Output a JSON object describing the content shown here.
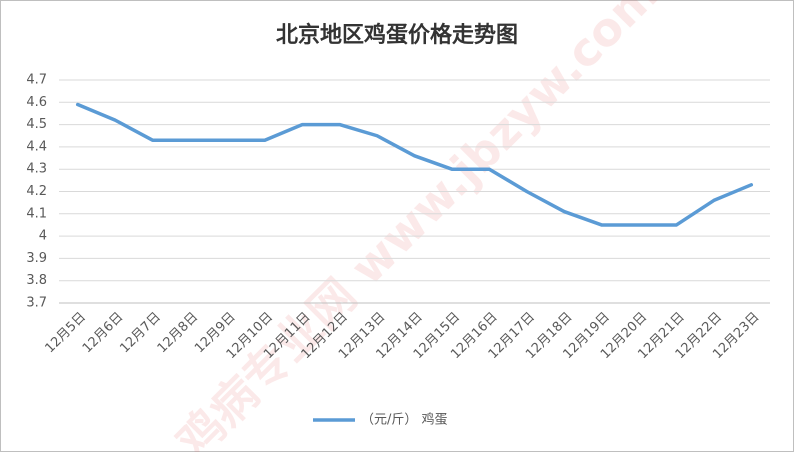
{
  "chart_data": {
    "type": "line",
    "title": "北京地区鸡蛋价格走势图",
    "watermark": "鸡病专业网 www.jbzyw.com",
    "categories": [
      "12月5日",
      "12月6日",
      "12月7日",
      "12月8日",
      "12月9日",
      "12月10日",
      "12月11日",
      "12月12日",
      "12月13日",
      "12月14日",
      "12月15日",
      "12月16日",
      "12月17日",
      "12月18日",
      "12月19日",
      "12月20日",
      "12月21日",
      "12月22日",
      "12月23日"
    ],
    "series": [
      {
        "name": "（元/斤） 鸡蛋",
        "color": "#5b9bd5",
        "values": [
          4.59,
          4.52,
          4.43,
          4.43,
          4.43,
          4.43,
          4.5,
          4.5,
          4.45,
          4.36,
          4.3,
          4.3,
          4.2,
          4.11,
          4.05,
          4.05,
          4.05,
          4.16,
          4.23
        ]
      }
    ],
    "ylim": [
      3.7,
      4.7
    ],
    "yticks": [
      3.7,
      3.8,
      3.9,
      4,
      4.1,
      4.2,
      4.3,
      4.4,
      4.5,
      4.6,
      4.7
    ],
    "grid": true,
    "legend": "bottom"
  }
}
